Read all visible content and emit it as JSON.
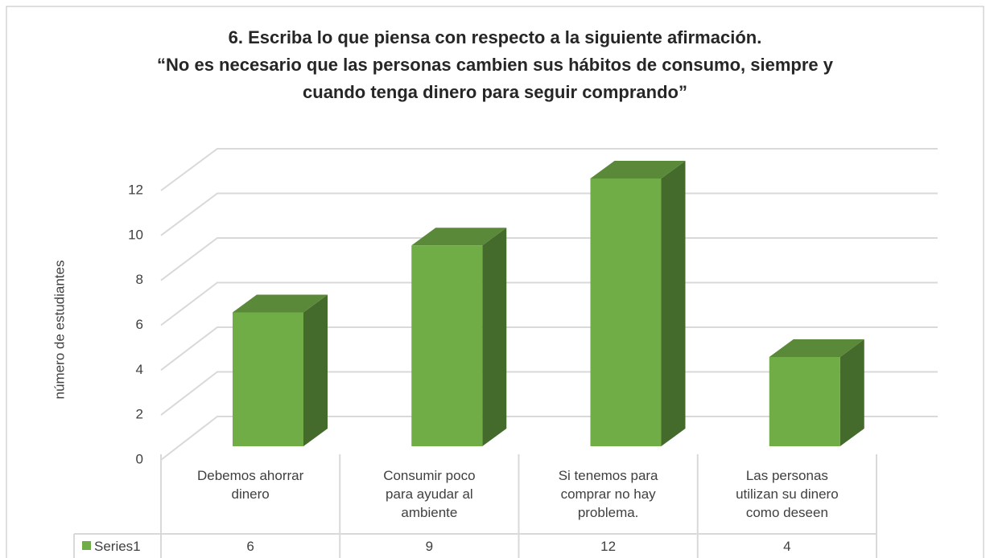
{
  "chart_data": {
    "type": "bar3d",
    "title": "6. Escriba lo que piensa con respecto a la siguiente afirmación.\n“No es necesario que las personas cambien sus hábitos de consumo, siempre y\ncuando tenga dinero  para seguir comprando”",
    "y_label": "número de estudiantes",
    "categories": [
      "Debemos ahorrar\ndinero",
      "Consumir poco\npara ayudar al\nambiente",
      "Si tenemos para\ncomprar no hay\nproblema.",
      "Las personas\nutilizan su dinero\ncomo deseen"
    ],
    "series": [
      {
        "name": "Series1",
        "color": "#70ad47",
        "values": [
          6,
          9,
          12,
          4
        ]
      }
    ],
    "ylim": [
      0,
      12
    ],
    "yticks": [
      0,
      2,
      4,
      6,
      8,
      10,
      12
    ],
    "grid": true,
    "data_table": true
  }
}
